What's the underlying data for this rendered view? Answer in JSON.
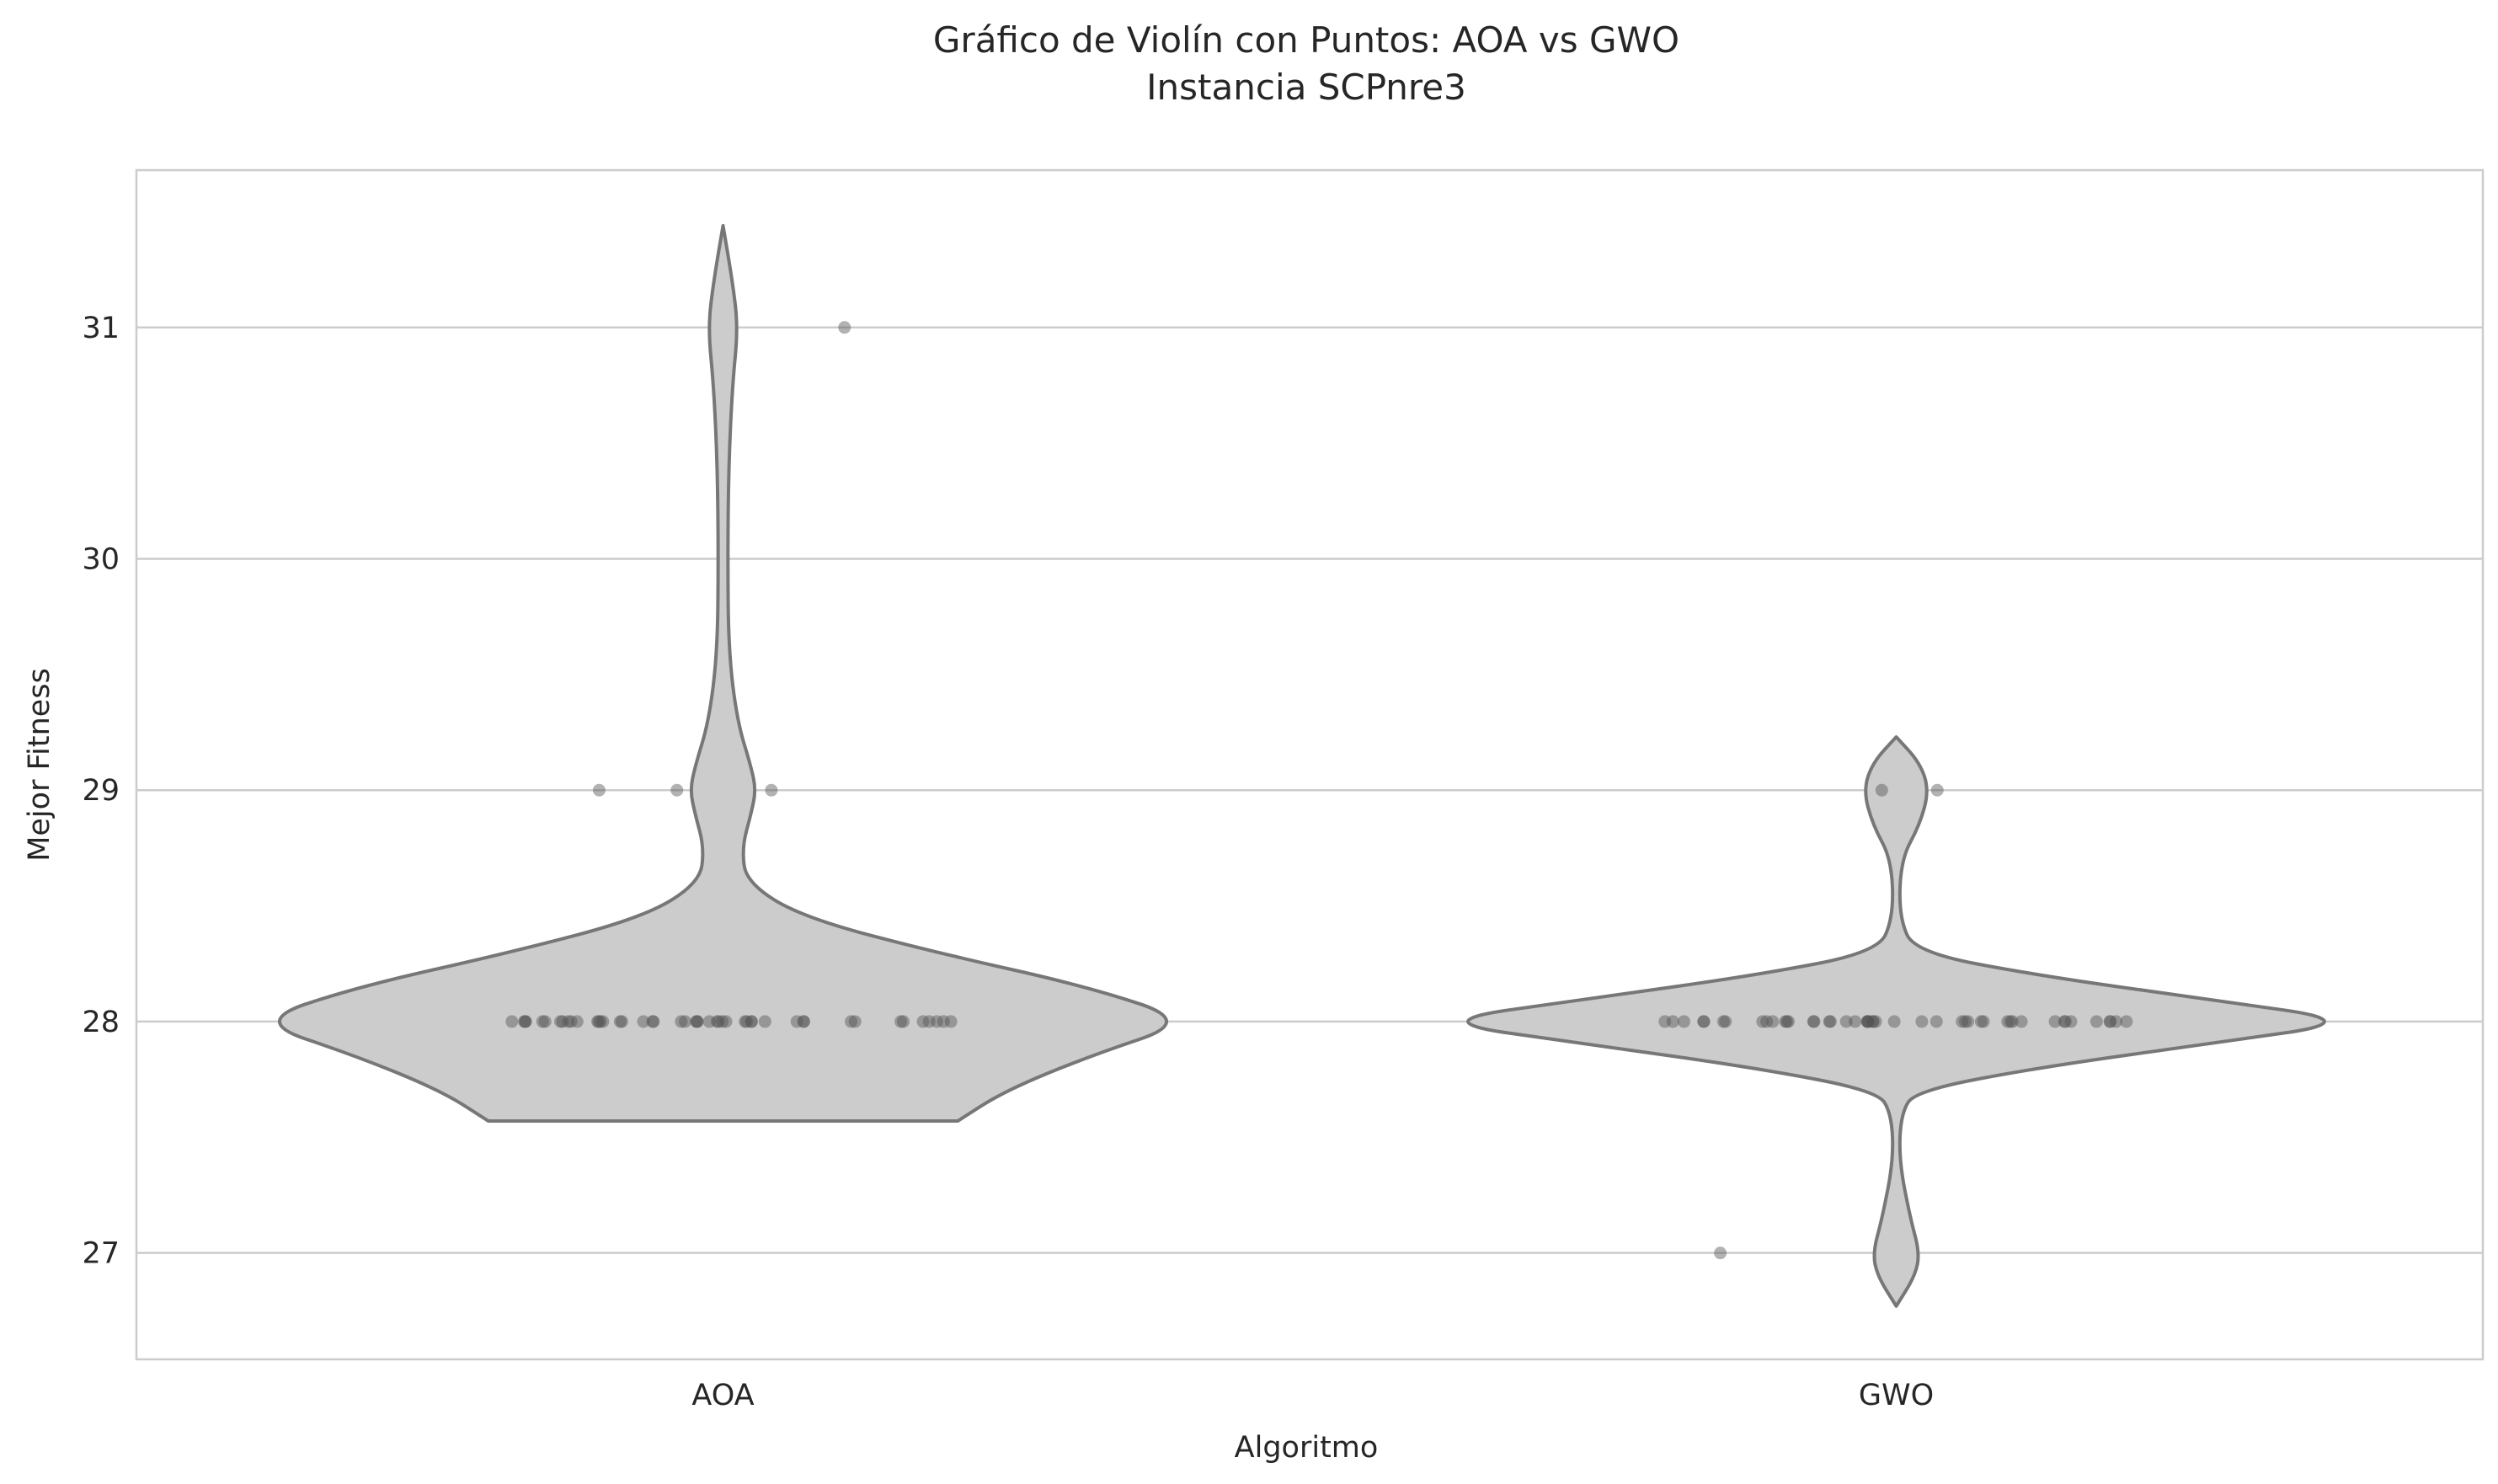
{
  "chart_data": {
    "type": "violin",
    "title": "Gráfico de Violín con Puntos: AOA vs GWO",
    "subtitle": "Instancia SCPnre3",
    "xlabel": "Algoritmo",
    "ylabel": "Mejor Fitness",
    "categories": [
      "AOA",
      "GWO"
    ],
    "ylim": [
      26.54,
      31.68
    ],
    "yticks": [
      27,
      28,
      29,
      30,
      31
    ],
    "grid": true,
    "colors": {
      "violin_fill": "#cccccc",
      "violin_stroke": "#777777",
      "point": "#555555",
      "grid": "#cccccc",
      "frame": "#cccccc"
    },
    "series": [
      {
        "category": "AOA",
        "values": [
          28,
          28,
          28,
          28,
          28,
          28,
          28,
          28,
          28,
          28,
          28,
          28,
          28,
          28,
          28,
          28,
          28,
          28,
          28,
          28,
          28,
          28,
          28,
          28,
          28,
          28,
          28,
          28,
          28,
          28,
          28,
          28,
          28,
          28,
          28,
          28,
          28,
          28,
          28,
          28,
          28,
          28,
          28,
          28,
          28,
          28,
          28,
          29,
          29,
          29,
          31
        ],
        "density": [
          [
            27.57,
            0.5
          ],
          [
            27.7,
            0.6
          ],
          [
            27.85,
            0.78
          ],
          [
            28.0,
            1.0
          ],
          [
            28.15,
            0.78
          ],
          [
            28.3,
            0.45
          ],
          [
            28.45,
            0.17
          ],
          [
            28.6,
            0.05
          ],
          [
            28.75,
            0.04
          ],
          [
            28.9,
            0.06
          ],
          [
            29.0,
            0.07
          ],
          [
            29.1,
            0.06
          ],
          [
            29.3,
            0.03
          ],
          [
            29.6,
            0.012
          ],
          [
            30.0,
            0.01
          ],
          [
            30.4,
            0.012
          ],
          [
            30.75,
            0.02
          ],
          [
            31.0,
            0.032
          ],
          [
            31.2,
            0.02
          ],
          [
            31.44,
            0.0
          ]
        ]
      },
      {
        "category": "GWO",
        "values": [
          28,
          28,
          28,
          28,
          28,
          28,
          28,
          28,
          28,
          28,
          28,
          28,
          28,
          28,
          28,
          28,
          28,
          28,
          28,
          28,
          28,
          28,
          28,
          28,
          28,
          28,
          28,
          28,
          28,
          28,
          28,
          28,
          28,
          28,
          28,
          28,
          28,
          28,
          28,
          28,
          28,
          28,
          28,
          28,
          28,
          28,
          28,
          29,
          29,
          27
        ],
        "density": [
          [
            26.77,
            0.0
          ],
          [
            26.9,
            0.04
          ],
          [
            27.0,
            0.05
          ],
          [
            27.15,
            0.03
          ],
          [
            27.4,
            0.006
          ],
          [
            27.6,
            0.01
          ],
          [
            27.7,
            0.04
          ],
          [
            27.8,
            0.3
          ],
          [
            27.9,
            0.65
          ],
          [
            28.0,
            1.0
          ],
          [
            28.1,
            0.65
          ],
          [
            28.2,
            0.3
          ],
          [
            28.3,
            0.04
          ],
          [
            28.45,
            0.006
          ],
          [
            28.7,
            0.01
          ],
          [
            28.85,
            0.05
          ],
          [
            29.0,
            0.07
          ],
          [
            29.12,
            0.05
          ],
          [
            29.23,
            0.0
          ]
        ]
      }
    ]
  }
}
